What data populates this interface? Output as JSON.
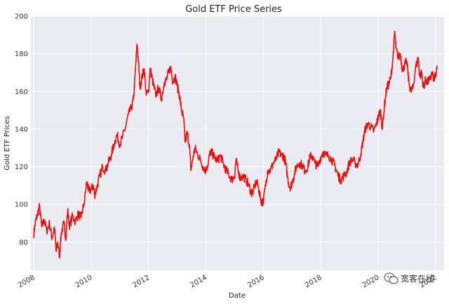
{
  "chart_data": {
    "type": "line",
    "title": "Gold ETF Price Series",
    "xlabel": "Date",
    "ylabel": "Gold ETF Prices",
    "xlim": [
      2007.9,
      2022.3
    ],
    "ylim": [
      65,
      200
    ],
    "x_ticks": [
      {
        "value": 2008,
        "label": "2008"
      },
      {
        "value": 2010,
        "label": "2010"
      },
      {
        "value": 2012,
        "label": "2012"
      },
      {
        "value": 2014,
        "label": "2014"
      },
      {
        "value": 2016,
        "label": "2016"
      },
      {
        "value": 2018,
        "label": "2018"
      },
      {
        "value": 2020,
        "label": "2020"
      },
      {
        "value": 2022,
        "label": "2022"
      }
    ],
    "y_ticks": [
      {
        "value": 80,
        "label": "80"
      },
      {
        "value": 100,
        "label": "100"
      },
      {
        "value": 120,
        "label": "120"
      },
      {
        "value": 140,
        "label": "140"
      },
      {
        "value": 160,
        "label": "160"
      },
      {
        "value": 180,
        "label": "180"
      },
      {
        "value": 200,
        "label": "200"
      }
    ],
    "grid": true,
    "series": [
      {
        "name": "Gold ETF",
        "color": "#e8100b",
        "points": [
          [
            2008.0,
            84
          ],
          [
            2008.05,
            90
          ],
          [
            2008.12,
            94
          ],
          [
            2008.2,
            99
          ],
          [
            2008.28,
            88
          ],
          [
            2008.36,
            92
          ],
          [
            2008.45,
            86
          ],
          [
            2008.55,
            90
          ],
          [
            2008.64,
            82
          ],
          [
            2008.72,
            88
          ],
          [
            2008.78,
            75
          ],
          [
            2008.84,
            80
          ],
          [
            2008.9,
            72
          ],
          [
            2008.96,
            85
          ],
          [
            2009.05,
            90
          ],
          [
            2009.12,
            82
          ],
          [
            2009.18,
            97
          ],
          [
            2009.25,
            88
          ],
          [
            2009.35,
            94
          ],
          [
            2009.45,
            91
          ],
          [
            2009.55,
            95
          ],
          [
            2009.65,
            93
          ],
          [
            2009.75,
            100
          ],
          [
            2009.85,
            112
          ],
          [
            2009.92,
            107
          ],
          [
            2010.0,
            108
          ],
          [
            2010.08,
            110
          ],
          [
            2010.12,
            105
          ],
          [
            2010.2,
            109
          ],
          [
            2010.3,
            115
          ],
          [
            2010.4,
            120
          ],
          [
            2010.5,
            118
          ],
          [
            2010.6,
            122
          ],
          [
            2010.7,
            126
          ],
          [
            2010.8,
            132
          ],
          [
            2010.9,
            137
          ],
          [
            2011.0,
            132
          ],
          [
            2011.1,
            136
          ],
          [
            2011.2,
            141
          ],
          [
            2011.3,
            148
          ],
          [
            2011.4,
            151
          ],
          [
            2011.48,
            156
          ],
          [
            2011.53,
            168
          ],
          [
            2011.6,
            185
          ],
          [
            2011.65,
            176
          ],
          [
            2011.7,
            162
          ],
          [
            2011.78,
            168
          ],
          [
            2011.85,
            172
          ],
          [
            2011.92,
            158
          ],
          [
            2012.0,
            160
          ],
          [
            2012.05,
            172
          ],
          [
            2012.1,
            169
          ],
          [
            2012.18,
            163
          ],
          [
            2012.25,
            158
          ],
          [
            2012.35,
            162
          ],
          [
            2012.45,
            156
          ],
          [
            2012.55,
            165
          ],
          [
            2012.62,
            166
          ],
          [
            2012.7,
            170
          ],
          [
            2012.78,
            173
          ],
          [
            2012.85,
            165
          ],
          [
            2012.92,
            168
          ],
          [
            2013.0,
            163
          ],
          [
            2013.08,
            158
          ],
          [
            2013.15,
            150
          ],
          [
            2013.22,
            146
          ],
          [
            2013.28,
            133
          ],
          [
            2013.35,
            138
          ],
          [
            2013.42,
            132
          ],
          [
            2013.48,
            118
          ],
          [
            2013.55,
            125
          ],
          [
            2013.62,
            130
          ],
          [
            2013.7,
            127
          ],
          [
            2013.8,
            124
          ],
          [
            2013.9,
            120
          ],
          [
            2014.0,
            118
          ],
          [
            2014.08,
            122
          ],
          [
            2014.15,
            128
          ],
          [
            2014.22,
            127
          ],
          [
            2014.3,
            125
          ],
          [
            2014.4,
            123
          ],
          [
            2014.5,
            126
          ],
          [
            2014.6,
            122
          ],
          [
            2014.7,
            118
          ],
          [
            2014.8,
            116
          ],
          [
            2014.9,
            113
          ],
          [
            2015.0,
            115
          ],
          [
            2015.05,
            124
          ],
          [
            2015.12,
            118
          ],
          [
            2015.2,
            114
          ],
          [
            2015.3,
            115
          ],
          [
            2015.4,
            113
          ],
          [
            2015.5,
            110
          ],
          [
            2015.58,
            106
          ],
          [
            2015.65,
            107
          ],
          [
            2015.75,
            112
          ],
          [
            2015.82,
            110
          ],
          [
            2015.9,
            103
          ],
          [
            2015.96,
            101
          ],
          [
            2016.0,
            102
          ],
          [
            2016.08,
            110
          ],
          [
            2016.15,
            118
          ],
          [
            2016.25,
            118
          ],
          [
            2016.35,
            122
          ],
          [
            2016.45,
            124
          ],
          [
            2016.55,
            128
          ],
          [
            2016.62,
            126
          ],
          [
            2016.7,
            126
          ],
          [
            2016.78,
            122
          ],
          [
            2016.85,
            114
          ],
          [
            2016.92,
            109
          ],
          [
            2017.0,
            111
          ],
          [
            2017.08,
            116
          ],
          [
            2017.15,
            120
          ],
          [
            2017.25,
            122
          ],
          [
            2017.35,
            121
          ],
          [
            2017.45,
            118
          ],
          [
            2017.55,
            120
          ],
          [
            2017.62,
            125
          ],
          [
            2017.7,
            126
          ],
          [
            2017.8,
            122
          ],
          [
            2017.9,
            120
          ],
          [
            2018.0,
            125
          ],
          [
            2018.08,
            128
          ],
          [
            2018.18,
            126
          ],
          [
            2018.28,
            126
          ],
          [
            2018.38,
            124
          ],
          [
            2018.48,
            121
          ],
          [
            2018.55,
            118
          ],
          [
            2018.62,
            115
          ],
          [
            2018.7,
            113
          ],
          [
            2018.8,
            115
          ],
          [
            2018.9,
            117
          ],
          [
            2019.0,
            122
          ],
          [
            2019.1,
            124
          ],
          [
            2019.2,
            122
          ],
          [
            2019.3,
            121
          ],
          [
            2019.4,
            127
          ],
          [
            2019.48,
            134
          ],
          [
            2019.55,
            140
          ],
          [
            2019.65,
            143
          ],
          [
            2019.75,
            141
          ],
          [
            2019.85,
            139
          ],
          [
            2019.95,
            143
          ],
          [
            2020.0,
            146
          ],
          [
            2020.08,
            150
          ],
          [
            2020.15,
            140
          ],
          [
            2020.22,
            152
          ],
          [
            2020.3,
            162
          ],
          [
            2020.38,
            164
          ],
          [
            2020.45,
            168
          ],
          [
            2020.52,
            178
          ],
          [
            2020.58,
            192
          ],
          [
            2020.62,
            183
          ],
          [
            2020.7,
            178
          ],
          [
            2020.78,
            180
          ],
          [
            2020.85,
            171
          ],
          [
            2020.92,
            174
          ],
          [
            2021.0,
            176
          ],
          [
            2021.08,
            164
          ],
          [
            2021.15,
            160
          ],
          [
            2021.22,
            162
          ],
          [
            2021.3,
            172
          ],
          [
            2021.4,
            178
          ],
          [
            2021.45,
            168
          ],
          [
            2021.52,
            170
          ],
          [
            2021.58,
            162
          ],
          [
            2021.65,
            166
          ],
          [
            2021.72,
            165
          ],
          [
            2021.8,
            166
          ],
          [
            2021.88,
            170
          ],
          [
            2021.95,
            166
          ],
          [
            2022.0,
            168
          ],
          [
            2022.06,
            172
          ]
        ]
      }
    ]
  },
  "watermark": {
    "icon": "wechat-icon",
    "text": "宽客在线"
  }
}
